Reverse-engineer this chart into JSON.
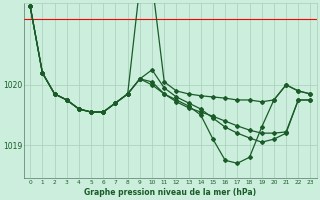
{
  "bg_color": "#cceedd",
  "grid_color": "#aaccbb",
  "line_color": "#1a5c28",
  "title": "Graphe pression niveau de la mer (hPa)",
  "ytick_labels": [
    "1019",
    "1020"
  ],
  "ytick_vals": [
    1019.0,
    1020.0
  ],
  "ylim": [
    1018.45,
    1021.35
  ],
  "xlim": [
    -0.5,
    23.5
  ],
  "red_line_y": 1021.1,
  "series": [
    {
      "x": [
        0,
        1,
        2,
        3,
        4,
        5,
        6,
        7,
        8,
        9,
        10,
        11,
        12,
        13,
        14,
        15,
        16,
        17,
        18,
        19,
        20,
        21,
        22,
        23
      ],
      "y": [
        1021.3,
        1020.2,
        1019.85,
        1019.75,
        1019.6,
        1019.55,
        1019.55,
        1019.7,
        1019.85,
        1021.65,
        1021.7,
        1020.05,
        1019.9,
        1019.85,
        1019.82,
        1019.8,
        1019.78,
        1019.75,
        1019.75,
        1019.72,
        1019.75,
        1020.0,
        1019.9,
        1019.85
      ]
    },
    {
      "x": [
        0,
        1,
        2,
        3,
        4,
        5,
        6,
        7,
        8,
        9,
        10,
        11,
        12,
        13,
        14,
        15,
        16,
        17,
        18,
        19,
        20,
        21,
        22,
        23
      ],
      "y": [
        1021.3,
        1020.2,
        1019.85,
        1019.75,
        1019.6,
        1019.55,
        1019.55,
        1019.7,
        1019.85,
        1020.1,
        1020.05,
        1019.85,
        1019.75,
        1019.65,
        1019.5,
        1019.1,
        1018.75,
        1018.7,
        1018.8,
        1019.3,
        1019.75,
        1020.0,
        1019.9,
        1019.85
      ]
    },
    {
      "x": [
        0,
        1,
        2,
        3,
        4,
        5,
        6,
        7,
        8,
        9,
        10,
        11,
        12,
        13,
        14,
        15,
        16,
        17,
        18,
        19,
        20,
        21,
        22,
        23
      ],
      "y": [
        1021.3,
        1020.2,
        1019.85,
        1019.75,
        1019.6,
        1019.55,
        1019.55,
        1019.7,
        1019.85,
        1020.1,
        1020.25,
        1019.95,
        1019.8,
        1019.7,
        1019.6,
        1019.45,
        1019.3,
        1019.2,
        1019.12,
        1019.05,
        1019.1,
        1019.2,
        1019.75,
        1019.75
      ]
    },
    {
      "x": [
        0,
        1,
        2,
        3,
        4,
        5,
        6,
        7,
        8,
        9,
        10,
        11,
        12,
        13,
        14,
        15,
        16,
        17,
        18,
        19,
        20,
        21,
        22,
        23
      ],
      "y": [
        1021.3,
        1020.2,
        1019.85,
        1019.75,
        1019.6,
        1019.55,
        1019.55,
        1019.7,
        1019.85,
        1020.1,
        1020.0,
        1019.85,
        1019.72,
        1019.62,
        1019.55,
        1019.48,
        1019.4,
        1019.32,
        1019.25,
        1019.2,
        1019.2,
        1019.22,
        1019.75,
        1019.75
      ]
    }
  ],
  "marker": "D",
  "markersize": 2.0,
  "linewidth": 0.9
}
